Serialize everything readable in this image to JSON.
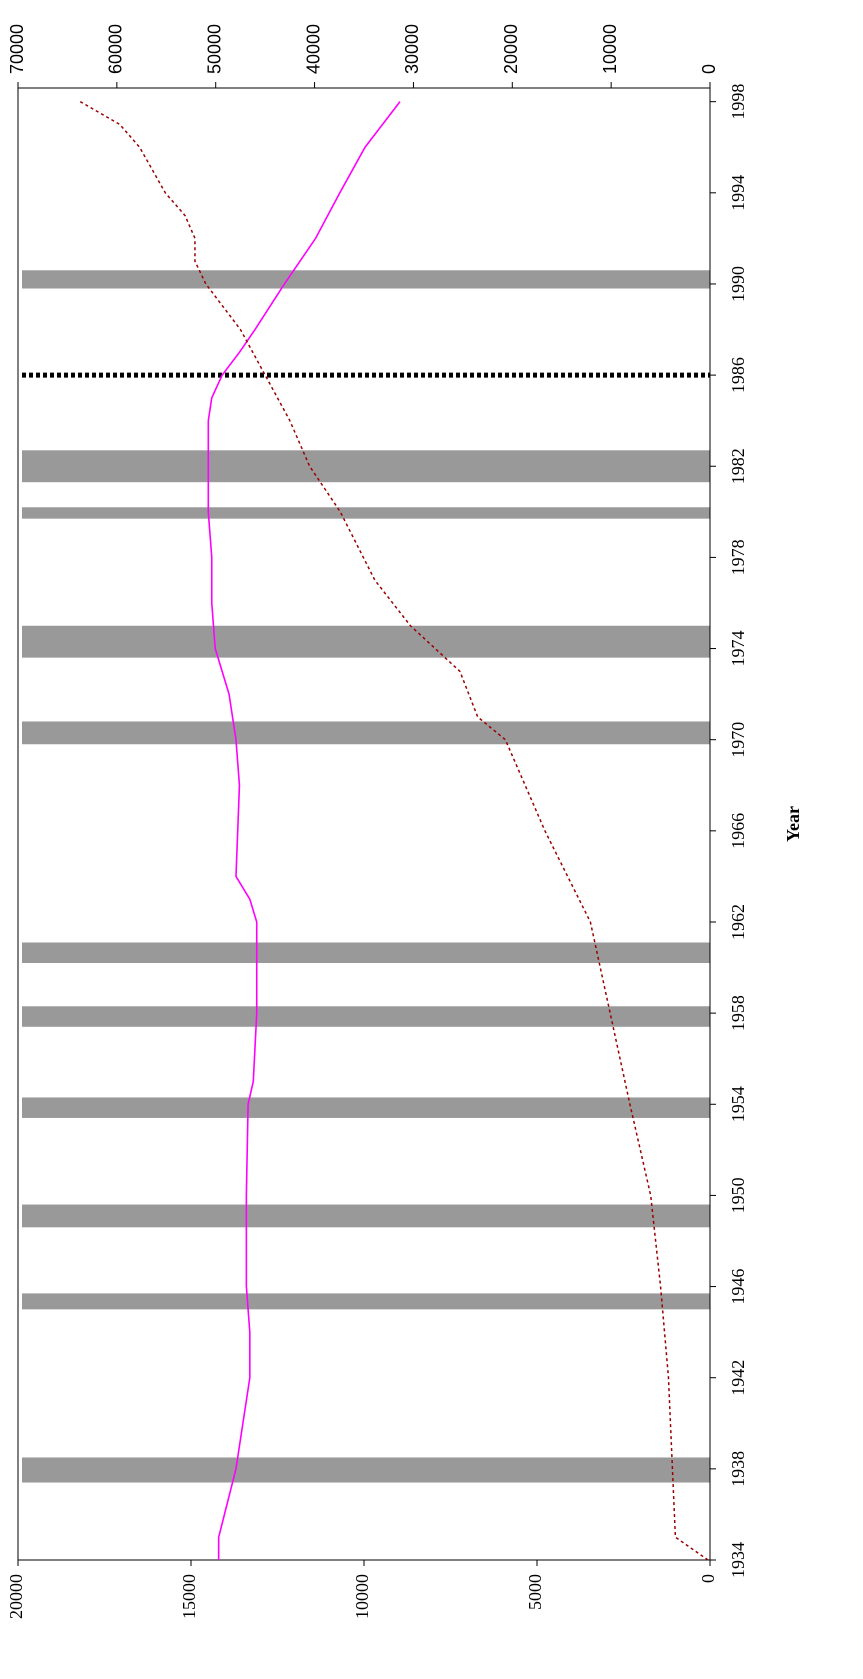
{
  "chart_data": {
    "type": "line",
    "x_label": "Year",
    "xlim": [
      1934,
      1998.6
    ],
    "xticks": [
      1934,
      1938,
      1942,
      1946,
      1950,
      1954,
      1958,
      1962,
      1966,
      1970,
      1974,
      1978,
      1982,
      1986,
      1990,
      1994,
      1998
    ],
    "ylim": [
      0,
      20000
    ],
    "yticks": [
      0,
      5000,
      10000,
      15000,
      20000
    ],
    "y2lim": [
      0,
      70000
    ],
    "y2ticks": [
      0,
      10000,
      20000,
      30000,
      40000,
      50000,
      60000,
      70000
    ],
    "series": [
      {
        "color": "#ff00ff",
        "style": "solid",
        "x": [
          1934,
          1935,
          1938,
          1940,
          1942,
          1944,
          1946,
          1950,
          1954,
          1955,
          1958,
          1962,
          1963,
          1964,
          1968,
          1970,
          1972,
          1974,
          1976,
          1978,
          1980,
          1982,
          1984,
          1985,
          1986,
          1987,
          1988,
          1990,
          1992,
          1994,
          1996,
          1998
        ],
        "values": [
          14200,
          14200,
          13700,
          13500,
          13300,
          13300,
          13400,
          13400,
          13350,
          13200,
          13100,
          13100,
          13300,
          13700,
          13600,
          13700,
          13900,
          14300,
          14400,
          14400,
          14500,
          14500,
          14500,
          14400,
          14100,
          13600,
          13150,
          12300,
          11400,
          10700,
          9970,
          8960
        ]
      },
      {
        "color": "#990000",
        "style": "dotted",
        "axis": "y2",
        "x": [
          1934,
          1935,
          1938,
          1942,
          1946,
          1950,
          1954,
          1958,
          1962,
          1966,
          1970,
          1971,
          1973,
          1975,
          1977,
          1980,
          1982,
          1984,
          1986,
          1988,
          1990,
          1991,
          1992,
          1993,
          1994,
          1996,
          1997,
          1998
        ],
        "values": [
          200,
          3500,
          3800,
          4200,
          5000,
          6000,
          8100,
          10100,
          12100,
          16700,
          20700,
          23500,
          25300,
          30300,
          33900,
          37400,
          40500,
          42500,
          45000,
          47500,
          51000,
          52100,
          52100,
          53100,
          55100,
          57700,
          59700,
          63700
        ]
      }
    ],
    "shaded_periods": [
      [
        1937.4,
        1938.5
      ],
      [
        1945.0,
        1945.7
      ],
      [
        1948.6,
        1949.6
      ],
      [
        1953.4,
        1954.3
      ],
      [
        1957.4,
        1958.3
      ],
      [
        1960.2,
        1961.1
      ],
      [
        1969.8,
        1970.8
      ],
      [
        1973.6,
        1975.0
      ],
      [
        1979.7,
        1980.2
      ],
      [
        1981.3,
        1982.7
      ],
      [
        1989.8,
        1990.6
      ]
    ],
    "shade_color": "#999999",
    "reference_lines": [
      1986
    ]
  }
}
